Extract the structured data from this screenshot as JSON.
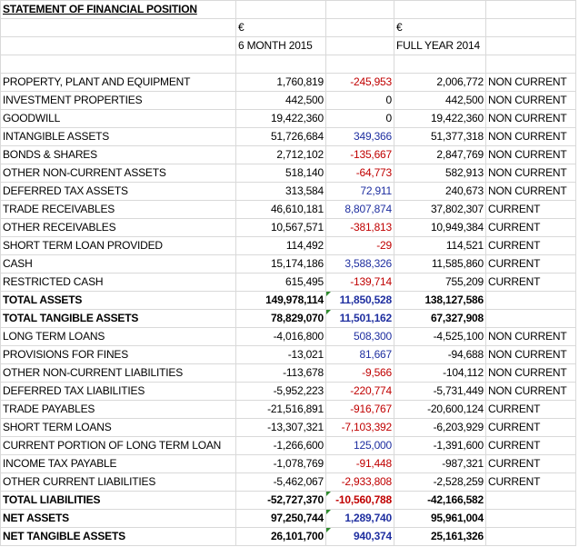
{
  "title": "STATEMENT OF FINANCIAL POSITION",
  "currency_a": "€",
  "currency_b": "€",
  "period_a": "6 MONTH 2015",
  "period_b": "FULL YEAR 2014",
  "colors": {
    "negative": "#c00000",
    "positive": "#1f2fa0",
    "flag": "#2e8b2e"
  },
  "rows": [
    {
      "label": "PROPERTY, PLANT AND EQUIPMENT",
      "h1": "1,760,819",
      "change": "-245,953",
      "dir": "neg",
      "fy": "2,006,772",
      "class": "NON CURRENT",
      "bold": false,
      "flag": false
    },
    {
      "label": "INVESTMENT PROPERTIES",
      "h1": "442,500",
      "change": "0",
      "dir": "none",
      "fy": "442,500",
      "class": "NON CURRENT",
      "bold": false,
      "flag": false
    },
    {
      "label": "GOODWILL",
      "h1": "19,422,360",
      "change": "0",
      "dir": "none",
      "fy": "19,422,360",
      "class": "NON CURRENT",
      "bold": false,
      "flag": false
    },
    {
      "label": "INTANGIBLE ASSETS",
      "h1": "51,726,684",
      "change": "349,366",
      "dir": "pos",
      "fy": "51,377,318",
      "class": "NON CURRENT",
      "bold": false,
      "flag": false
    },
    {
      "label": "BONDS & SHARES",
      "h1": "2,712,102",
      "change": "-135,667",
      "dir": "neg",
      "fy": "2,847,769",
      "class": "NON CURRENT",
      "bold": false,
      "flag": false
    },
    {
      "label": "OTHER NON-CURRENT ASSETS",
      "h1": "518,140",
      "change": "-64,773",
      "dir": "neg",
      "fy": "582,913",
      "class": "NON CURRENT",
      "bold": false,
      "flag": false
    },
    {
      "label": "DEFERRED TAX ASSETS",
      "h1": "313,584",
      "change": "72,911",
      "dir": "pos",
      "fy": "240,673",
      "class": "NON CURRENT",
      "bold": false,
      "flag": false
    },
    {
      "label": "TRADE RECEIVABLES",
      "h1": "46,610,181",
      "change": "8,807,874",
      "dir": "pos",
      "fy": "37,802,307",
      "class": "CURRENT",
      "bold": false,
      "flag": false
    },
    {
      "label": "OTHER RECEIVABLES",
      "h1": "10,567,571",
      "change": "-381,813",
      "dir": "neg",
      "fy": "10,949,384",
      "class": "CURRENT",
      "bold": false,
      "flag": false
    },
    {
      "label": "SHORT TERM LOAN PROVIDED",
      "h1": "114,492",
      "change": "-29",
      "dir": "neg",
      "fy": "114,521",
      "class": "CURRENT",
      "bold": false,
      "flag": false
    },
    {
      "label": "CASH",
      "h1": "15,174,186",
      "change": "3,588,326",
      "dir": "pos",
      "fy": "11,585,860",
      "class": "CURRENT",
      "bold": false,
      "flag": false
    },
    {
      "label": "RESTRICTED CASH",
      "h1": "615,495",
      "change": "-139,714",
      "dir": "neg",
      "fy": "755,209",
      "class": "CURRENT",
      "bold": false,
      "flag": false
    },
    {
      "label": "TOTAL ASSETS",
      "h1": "149,978,114",
      "change": "11,850,528",
      "dir": "pos",
      "fy": "138,127,586",
      "class": "",
      "bold": true,
      "flag": true
    },
    {
      "label": "TOTAL TANGIBLE ASSETS",
      "h1": "78,829,070",
      "change": "11,501,162",
      "dir": "pos",
      "fy": "67,327,908",
      "class": "",
      "bold": true,
      "flag": true
    },
    {
      "label": "LONG TERM LOANS",
      "h1": "-4,016,800",
      "change": "508,300",
      "dir": "pos",
      "fy": "-4,525,100",
      "class": "NON CURRENT",
      "bold": false,
      "flag": false
    },
    {
      "label": "PROVISIONS FOR FINES",
      "h1": "-13,021",
      "change": "81,667",
      "dir": "pos",
      "fy": "-94,688",
      "class": "NON CURRENT",
      "bold": false,
      "flag": false
    },
    {
      "label": "OTHER NON-CURRENT LIABILITIES",
      "h1": "-113,678",
      "change": "-9,566",
      "dir": "neg",
      "fy": "-104,112",
      "class": "NON CURRENT",
      "bold": false,
      "flag": false
    },
    {
      "label": "DEFERRED TAX LIABILITIES",
      "h1": "-5,952,223",
      "change": "-220,774",
      "dir": "neg",
      "fy": "-5,731,449",
      "class": "NON CURRENT",
      "bold": false,
      "flag": false
    },
    {
      "label": "TRADE PAYABLES",
      "h1": "-21,516,891",
      "change": "-916,767",
      "dir": "neg",
      "fy": "-20,600,124",
      "class": "CURRENT",
      "bold": false,
      "flag": false
    },
    {
      "label": "SHORT TERM LOANS",
      "h1": "-13,307,321",
      "change": "-7,103,392",
      "dir": "neg",
      "fy": "-6,203,929",
      "class": "CURRENT",
      "bold": false,
      "flag": false
    },
    {
      "label": "CURRENT PORTION OF LONG TERM LOAN",
      "h1": "-1,266,600",
      "change": "125,000",
      "dir": "pos",
      "fy": "-1,391,600",
      "class": "CURRENT",
      "bold": false,
      "flag": false
    },
    {
      "label": "INCOME TAX PAYABLE",
      "h1": "-1,078,769",
      "change": "-91,448",
      "dir": "neg",
      "fy": "-987,321",
      "class": "CURRENT",
      "bold": false,
      "flag": false
    },
    {
      "label": "OTHER CURRENT LIABILITIES",
      "h1": "-5,462,067",
      "change": "-2,933,808",
      "dir": "neg",
      "fy": "-2,528,259",
      "class": "CURRENT",
      "bold": false,
      "flag": false
    },
    {
      "label": "TOTAL LIABILITIES",
      "h1": "-52,727,370",
      "change": "-10,560,788",
      "dir": "neg",
      "fy": "-42,166,582",
      "class": "",
      "bold": true,
      "flag": true
    },
    {
      "label": "NET ASSETS",
      "h1": "97,250,744",
      "change": "1,289,740",
      "dir": "pos",
      "fy": "95,961,004",
      "class": "",
      "bold": true,
      "flag": true
    },
    {
      "label": "NET TANGIBLE ASSETS",
      "h1": "26,101,700",
      "change": "940,374",
      "dir": "pos",
      "fy": "25,161,326",
      "class": "",
      "bold": true,
      "flag": true
    }
  ]
}
